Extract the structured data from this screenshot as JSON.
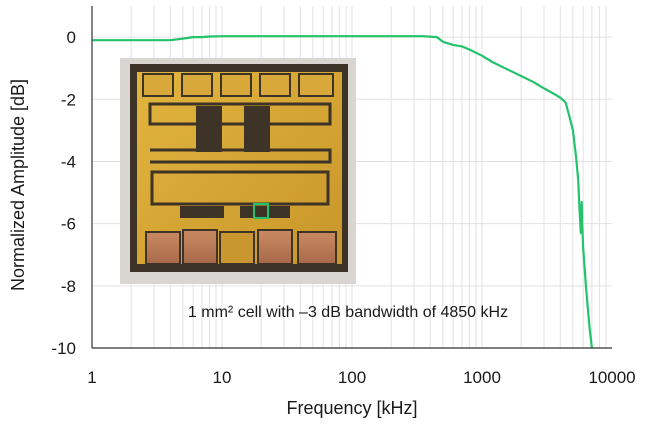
{
  "chart_data": {
    "type": "line",
    "xlabel": "Frequency  [kHz]",
    "ylabel": "Normalized Amplitude [dB]",
    "xscale": "log",
    "xlim": [
      1,
      10000
    ],
    "ylim": [
      -10,
      1
    ],
    "xticks": [
      "1",
      "10",
      "100",
      "1000",
      "10000"
    ],
    "yticks": [
      "0",
      "-2",
      "-4",
      "-6",
      "-8",
      "-10"
    ],
    "grid": true,
    "annotation": "1 mm² cell with –3 dB bandwidth of 4850 kHz",
    "inset_image": "photo of a 1 mm² cell chip with gold electrodes and copper pads",
    "colors": {
      "line": "#22c36a",
      "grid": "#e2e2e2",
      "axis": "#333333"
    },
    "series": [
      {
        "x": [
          1,
          2,
          3,
          4,
          5,
          6,
          7,
          8,
          10,
          20,
          50,
          100,
          200,
          350,
          450,
          500,
          600,
          700,
          800,
          1000,
          1200,
          1500,
          2000,
          2500,
          3000,
          3500,
          4000,
          4400,
          4800,
          5000,
          5300,
          5500,
          5600,
          5700,
          5750,
          5800,
          5850,
          5900,
          6000,
          6300,
          6700,
          7000
        ],
        "y": [
          -0.1,
          -0.1,
          -0.1,
          -0.1,
          -0.05,
          0.0,
          0.0,
          0.02,
          0.03,
          0.03,
          0.03,
          0.03,
          0.03,
          0.03,
          0.0,
          -0.15,
          -0.25,
          -0.3,
          -0.4,
          -0.6,
          -0.8,
          -1.0,
          -1.25,
          -1.45,
          -1.65,
          -1.8,
          -1.95,
          -2.1,
          -2.7,
          -3.0,
          -3.9,
          -4.6,
          -5.4,
          -6.0,
          -6.3,
          -5.9,
          -5.3,
          -6.0,
          -6.8,
          -8.0,
          -9.3,
          -10.0
        ]
      }
    ]
  }
}
